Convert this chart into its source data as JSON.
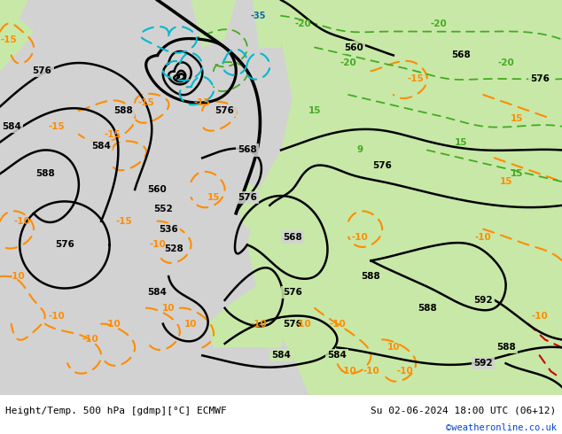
{
  "title_left": "Height/Temp. 500 hPa [gdmp][°C] ECMWF",
  "title_right": "Su 02-06-2024 18:00 UTC (06+12)",
  "credit": "©weatheronline.co.uk",
  "bg_gray": "#d2d2d2",
  "bg_green": "#c8e8a8",
  "white": "#ffffff",
  "credit_color": "#0044cc",
  "figsize": [
    6.34,
    4.9
  ],
  "dpi": 100
}
